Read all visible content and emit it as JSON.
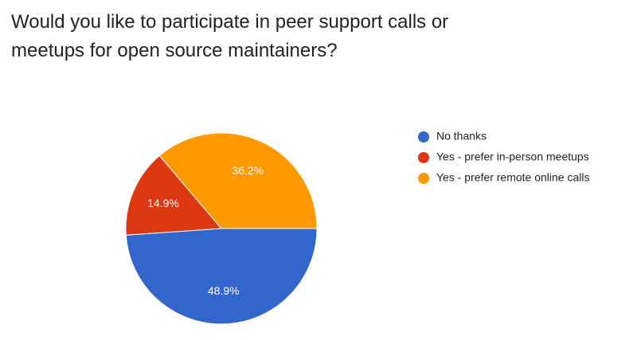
{
  "chart_data": {
    "type": "pie",
    "title": "Would you like to participate in peer support calls or meetups for open source maintainers?",
    "categories": [
      "No thanks",
      "Yes - prefer in-person meetups",
      "Yes - prefer remote online calls"
    ],
    "values": [
      48.9,
      14.9,
      36.2
    ],
    "value_labels": [
      "48.9%",
      "14.9%",
      "36.2%"
    ],
    "colors": [
      "#3366cc",
      "#dc3912",
      "#ff9900"
    ]
  }
}
